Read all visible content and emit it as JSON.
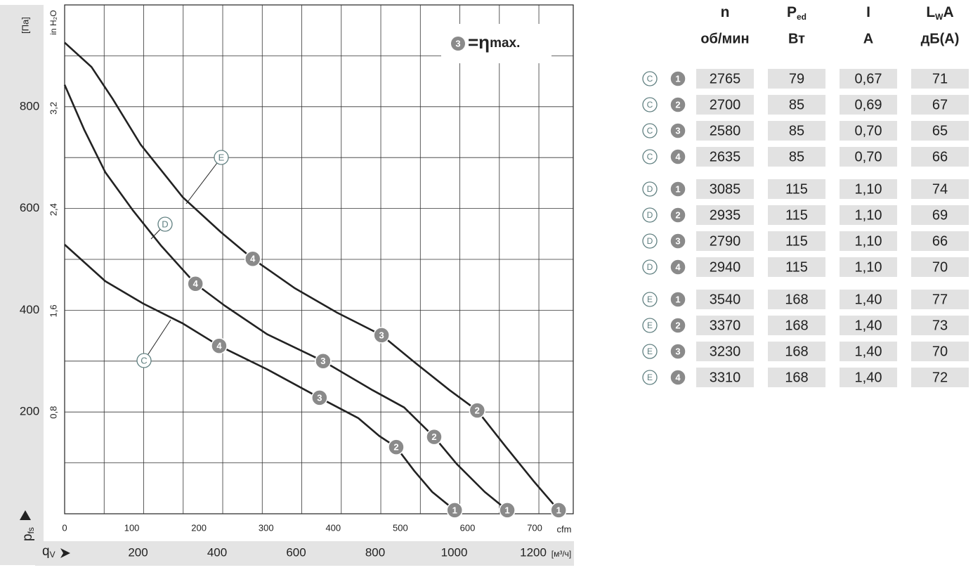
{
  "chart_data": {
    "type": "line",
    "y_label": "[Па]",
    "y2_label": "in H₂O",
    "y_symbol": {
      "main": "p",
      "sub": "fs"
    },
    "x_symbol": {
      "main": "q",
      "sub": "V"
    },
    "x_unit": "[м³/ч]",
    "x2_unit": "cfm",
    "xlim": [
      0,
      1287
    ],
    "xticks": [
      200,
      400,
      600,
      800,
      1000,
      1200
    ],
    "xminor": [
      100,
      300,
      500,
      700,
      900,
      1100
    ],
    "x2lim": [
      0,
      757.5
    ],
    "x2ticks": [
      0,
      100,
      200,
      300,
      400,
      500,
      600,
      700
    ],
    "ylim": [
      0,
      1000
    ],
    "yticks": [
      200,
      400,
      600,
      800
    ],
    "yminor": [
      100,
      300,
      500,
      700,
      900
    ],
    "y2lim": [
      0,
      4.0147
    ],
    "y2ticks": [
      {
        "value": 0.8,
        "label": "0,8"
      },
      {
        "value": 1.6,
        "label": "1,6"
      },
      {
        "value": 2.4,
        "label": "2,4"
      },
      {
        "value": 3.2,
        "label": "3,2"
      }
    ],
    "grid": true,
    "note": {
      "badge": "3",
      "symbol": "=η",
      "text": "max."
    },
    "series": [
      {
        "name": "C",
        "color": "#222222",
        "x": [
          0,
          103,
          199,
          299,
          391,
          512,
          645,
          743,
          796,
          839,
          885,
          930,
          987
        ],
        "values": [
          529,
          457,
          413,
          374,
          330,
          284,
          228,
          188,
          153,
          131,
          84,
          43,
          7
        ],
        "points": {
          "labels": [
            "4",
            "3",
            "2",
            "1"
          ],
          "x": [
            391,
            645,
            839,
            987
          ],
          "y": [
            330,
            228,
            131,
            7
          ]
        }
      },
      {
        "name": "D",
        "color": "#222222",
        "x": [
          0,
          50,
          103,
          174,
          245,
          331,
          405,
          512,
          654,
          779,
          859,
          935,
          992,
          1063,
          1120
        ],
        "values": [
          843,
          754,
          671,
          595,
          526,
          452,
          409,
          353,
          300,
          243,
          209,
          151,
          98,
          43,
          7
        ],
        "points": {
          "labels": [
            "4",
            "3",
            "2",
            "1"
          ],
          "x": [
            331,
            654,
            935,
            1120
          ],
          "y": [
            452,
            300,
            151,
            7
          ]
        }
      },
      {
        "name": "E",
        "color": "#222222",
        "x": [
          0,
          68,
          121,
          192,
          299,
          396,
          476,
          583,
          690,
          802,
          885,
          974,
          1044,
          1116,
          1188,
          1250
        ],
        "values": [
          926,
          878,
          816,
          726,
          622,
          553,
          501,
          443,
          395,
          351,
          298,
          243,
          203,
          132,
          63,
          7
        ],
        "points": {
          "labels": [
            "4",
            "3",
            "2",
            "1"
          ],
          "x": [
            476,
            802,
            1044,
            1250
          ],
          "y": [
            501,
            351,
            203,
            7
          ]
        }
      }
    ]
  },
  "table": {
    "headers": [
      {
        "symbol": "n",
        "unit": "об/мин"
      },
      {
        "symbol": "P",
        "sub": "ed",
        "unit": "Вт"
      },
      {
        "symbol": "I",
        "unit": "A"
      },
      {
        "symbol": "L",
        "sub": "W",
        "tail": "A",
        "unit": "дБ(А)"
      }
    ],
    "rows": [
      {
        "curve": "C",
        "point": "1",
        "cells": [
          "2765",
          "79",
          "0,67",
          "71"
        ]
      },
      {
        "curve": "C",
        "point": "2",
        "cells": [
          "2700",
          "85",
          "0,69",
          "67"
        ]
      },
      {
        "curve": "C",
        "point": "3",
        "cells": [
          "2580",
          "85",
          "0,70",
          "65"
        ]
      },
      {
        "curve": "C",
        "point": "4",
        "cells": [
          "2635",
          "85",
          "0,70",
          "66"
        ]
      },
      {
        "curve": "D",
        "point": "1",
        "cells": [
          "3085",
          "115",
          "1,10",
          "74"
        ]
      },
      {
        "curve": "D",
        "point": "2",
        "cells": [
          "2935",
          "115",
          "1,10",
          "69"
        ]
      },
      {
        "curve": "D",
        "point": "3",
        "cells": [
          "2790",
          "115",
          "1,10",
          "66"
        ]
      },
      {
        "curve": "D",
        "point": "4",
        "cells": [
          "2940",
          "115",
          "1,10",
          "70"
        ]
      },
      {
        "curve": "E",
        "point": "1",
        "cells": [
          "3540",
          "168",
          "1,40",
          "77"
        ]
      },
      {
        "curve": "E",
        "point": "2",
        "cells": [
          "3370",
          "168",
          "1,40",
          "73"
        ]
      },
      {
        "curve": "E",
        "point": "3",
        "cells": [
          "3230",
          "168",
          "1,40",
          "70"
        ]
      },
      {
        "curve": "E",
        "point": "4",
        "cells": [
          "3310",
          "168",
          "1,40",
          "72"
        ]
      }
    ]
  }
}
